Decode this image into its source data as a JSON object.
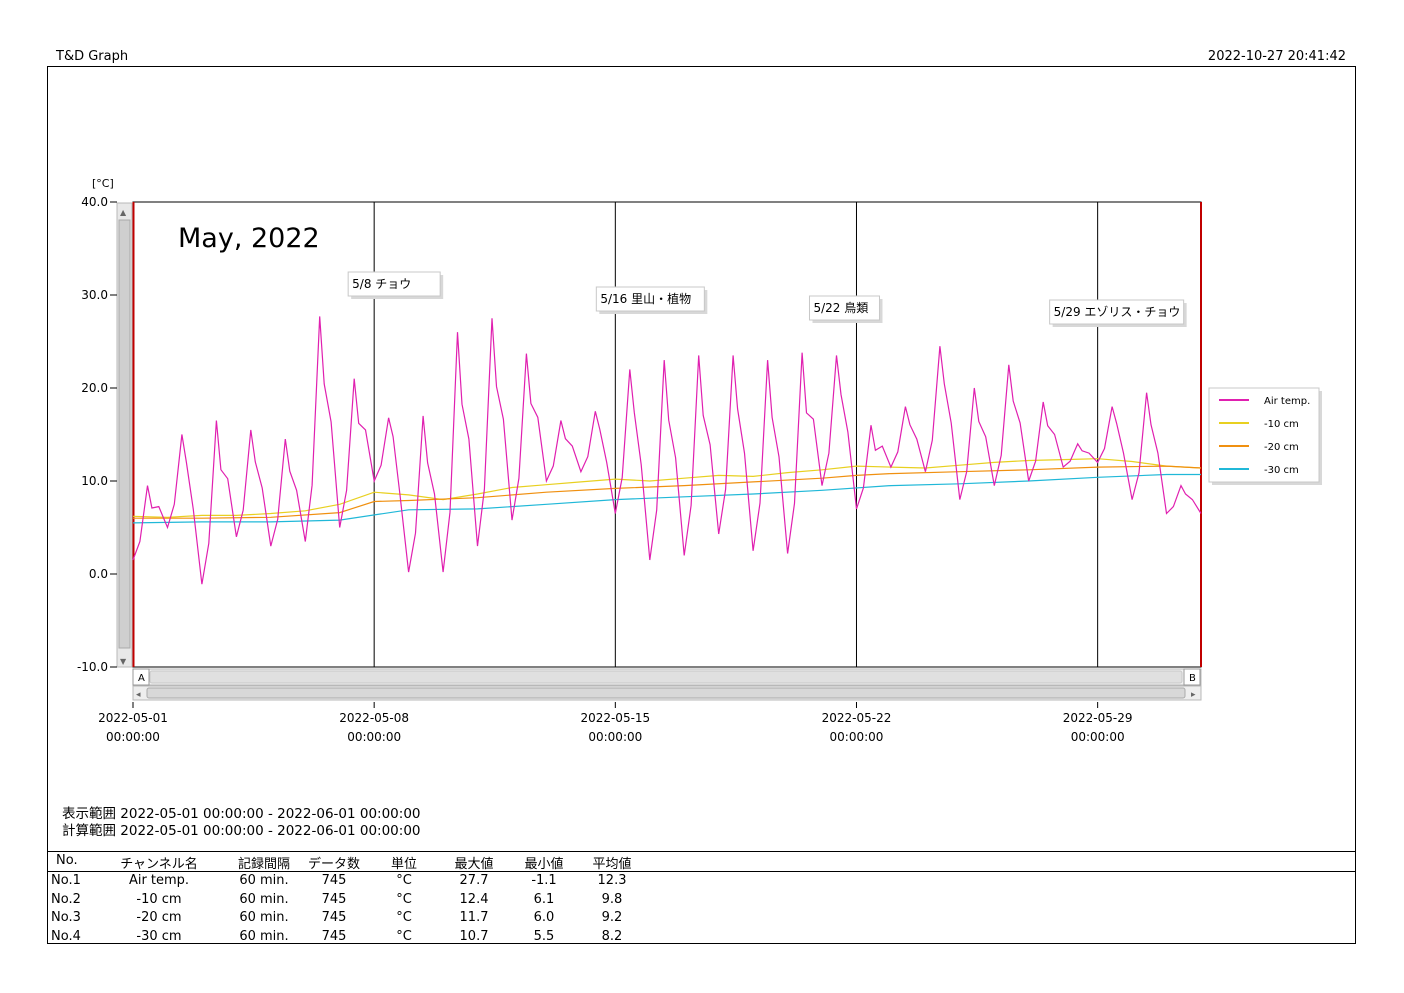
{
  "app_title": "T&D Graph",
  "timestamp": "2022-10-27 20:41:42",
  "chart_data": {
    "type": "line",
    "title": "May, 2022",
    "unit_label": "[°C]",
    "ylim": [
      -10,
      40
    ],
    "y_ticks": [
      "40.0",
      "30.0",
      "20.0",
      "10.0",
      "0.0",
      "-10.0"
    ],
    "x_ticks": [
      {
        "date": "2022-05-01",
        "time": "00:00:00"
      },
      {
        "date": "2022-05-08",
        "time": "00:00:00"
      },
      {
        "date": "2022-05-15",
        "time": "00:00:00"
      },
      {
        "date": "2022-05-22",
        "time": "00:00:00"
      },
      {
        "date": "2022-05-29",
        "time": "00:00:00"
      }
    ],
    "x_range_days": [
      0,
      31
    ],
    "grid": "vertical lines at week starts",
    "legend_position": "right",
    "cursor_labels": [
      "A",
      "B"
    ],
    "annotations": [
      {
        "day": 7,
        "text": "5/8 チョウ"
      },
      {
        "day": 14,
        "text": "5/16 里山・植物"
      },
      {
        "day": 21,
        "text": "5/22 鳥類"
      },
      {
        "day": 28,
        "text": "5/29 エゾリス・チョウ"
      }
    ],
    "series": [
      {
        "name": "Air temp.",
        "color": "#e020b0",
        "daily_min": [
          1.5,
          5.0,
          -1.1,
          4.0,
          3.0,
          3.5,
          5.0,
          10.0,
          0.2,
          0.2,
          3.0,
          5.8,
          10.0,
          11.0,
          6.5,
          1.5,
          2.0,
          4.3,
          2.5,
          2.2,
          9.5,
          7.0,
          11.5,
          11.0,
          8.0,
          9.5,
          10.0,
          11.5,
          12.0,
          8.0,
          6.5
        ],
        "daily_max": [
          9.5,
          15.0,
          16.5,
          15.5,
          14.5,
          27.7,
          21.0,
          16.8,
          17.0,
          26.0,
          27.5,
          23.7,
          16.5,
          17.5,
          22.0,
          23.0,
          23.5,
          23.5,
          23.0,
          23.8,
          23.5,
          16.0,
          18.0,
          24.5,
          20.0,
          22.5,
          18.5,
          14.0,
          18.0,
          19.5,
          9.5
        ]
      },
      {
        "name": "-10 cm",
        "color": "#e8d020",
        "days": [
          0,
          1,
          2,
          3,
          4,
          5,
          6,
          7,
          8,
          9,
          10,
          11,
          12,
          13,
          14,
          15,
          16,
          17,
          18,
          19,
          20,
          21,
          22,
          23,
          24,
          25,
          26,
          27,
          28,
          29,
          30,
          31
        ],
        "values": [
          6.2,
          6.1,
          6.3,
          6.3,
          6.5,
          6.8,
          7.5,
          8.8,
          8.5,
          8.0,
          8.6,
          9.3,
          9.6,
          9.9,
          10.2,
          10.0,
          10.3,
          10.6,
          10.5,
          10.9,
          11.2,
          11.6,
          11.5,
          11.4,
          11.7,
          12.0,
          12.2,
          12.3,
          12.4,
          12.1,
          11.6,
          11.4
        ]
      },
      {
        "name": "-20 cm",
        "color": "#f09010",
        "days": [
          0,
          2,
          4,
          6,
          7,
          8,
          10,
          12,
          14,
          16,
          18,
          20,
          21,
          22,
          24,
          26,
          28,
          30,
          31
        ],
        "values": [
          6.0,
          6.0,
          6.1,
          6.6,
          7.8,
          7.9,
          8.2,
          8.8,
          9.2,
          9.5,
          9.9,
          10.3,
          10.6,
          10.8,
          11.0,
          11.2,
          11.5,
          11.6,
          11.4
        ]
      },
      {
        "name": "-30 cm",
        "color": "#20b8d8",
        "days": [
          0,
          2,
          4,
          6,
          8,
          10,
          12,
          14,
          16,
          18,
          20,
          22,
          24,
          26,
          28,
          30,
          31
        ],
        "values": [
          5.5,
          5.6,
          5.6,
          5.8,
          6.9,
          7.0,
          7.5,
          8.0,
          8.3,
          8.6,
          9.0,
          9.5,
          9.7,
          10.0,
          10.4,
          10.7,
          10.7
        ]
      }
    ]
  },
  "range_display": "表示範囲 2022-05-01 00:00:00 - 2022-06-01 00:00:00",
  "range_calc": "計算範囲 2022-05-01 00:00:00 - 2022-06-01 00:00:00",
  "table": {
    "headers": [
      "No.",
      "チャンネル名",
      "記録間隔",
      "データ数",
      "単位",
      "最大値",
      "最小値",
      "平均値"
    ],
    "rows": [
      [
        "No.1",
        "Air temp.",
        "60 min.",
        "745",
        "°C",
        "27.7",
        "-1.1",
        "12.3"
      ],
      [
        "No.2",
        "-10 cm",
        "60 min.",
        "745",
        "°C",
        "12.4",
        "6.1",
        "9.8"
      ],
      [
        "No.3",
        "-20 cm",
        "60 min.",
        "745",
        "°C",
        "11.7",
        "6.0",
        "9.2"
      ],
      [
        "No.4",
        "-30 cm",
        "60 min.",
        "745",
        "°C",
        "10.7",
        "5.5",
        "8.2"
      ]
    ]
  }
}
